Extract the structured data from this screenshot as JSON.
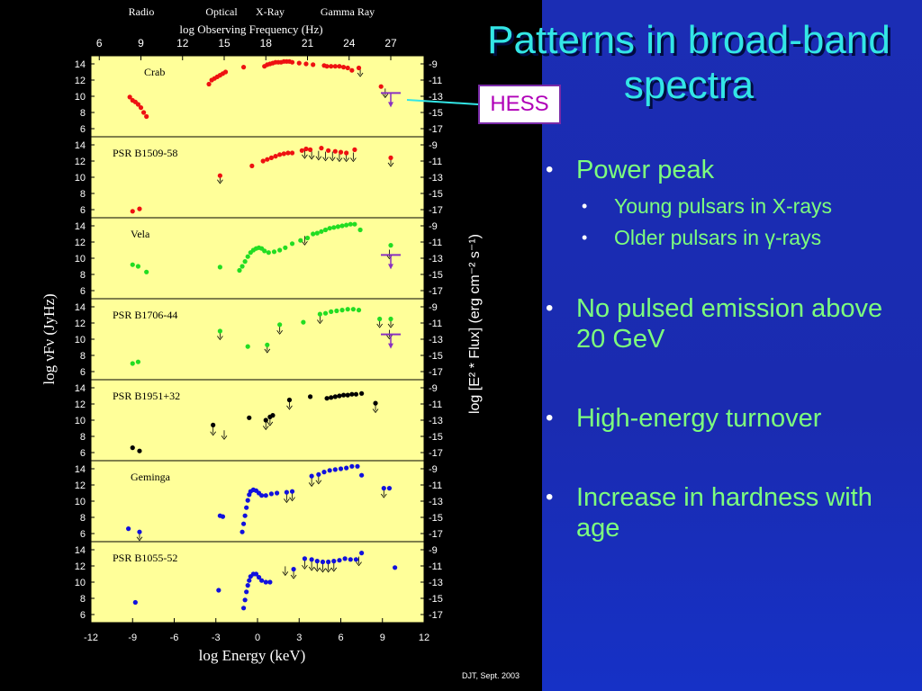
{
  "slide": {
    "title_line1": "Patterns in broad-band",
    "title_line2": "spectra",
    "hess_label": "HESS",
    "bullets": [
      {
        "text": "Power peak",
        "sub": [
          "Young pulsars in X-rays",
          "Older pulsars in γ-rays"
        ]
      },
      {
        "text": "No pulsed emission above 20 GeV"
      },
      {
        "text": "High-energy turnover"
      },
      {
        "text": "Increase in hardness with age"
      }
    ],
    "footer": "DJT, Sept. 2003"
  },
  "chart_data": {
    "type": "scatter",
    "top_bands": [
      "Radio",
      "Optical",
      "X-Ray",
      "Gamma Ray"
    ],
    "top_axis_label": "log Observing Frequency (Hz)",
    "top_ticks": [
      6,
      9,
      12,
      15,
      18,
      21,
      24,
      27
    ],
    "xlabel": "log Energy (keV)",
    "xticks": [
      -12,
      -9,
      -6,
      -3,
      0,
      3,
      6,
      9,
      12
    ],
    "xlim": [
      -12,
      12
    ],
    "ylabel_left": "log νFν (JyHz)",
    "ylabel_right": "log [E² * Flux] (erg cm⁻² s⁻¹)",
    "left_ticks": [
      6,
      8,
      10,
      12,
      14
    ],
    "right_ticks": [
      -9,
      -11,
      -13,
      -15,
      -17
    ],
    "panel_ylim": [
      5,
      15
    ],
    "colors": {
      "red": "#ee1111",
      "green": "#22dd22",
      "black": "#000000",
      "blue": "#1111dd",
      "limit": "#8a30c0",
      "panel_bg": "#ffff99"
    },
    "panels": [
      {
        "name": "Crab",
        "color": "red",
        "hess": true,
        "points": [
          [
            -9.2,
            9.9
          ],
          [
            -9.0,
            9.5
          ],
          [
            -8.8,
            9.3
          ],
          [
            -8.6,
            9.0
          ],
          [
            -8.4,
            8.6
          ],
          [
            -8.2,
            8.0
          ],
          [
            -8.0,
            7.5
          ],
          [
            -3.5,
            11.5
          ],
          [
            -3.3,
            12.0
          ],
          [
            -3.1,
            12.2
          ],
          [
            -2.9,
            12.4
          ],
          [
            -2.7,
            12.6
          ],
          [
            -2.5,
            12.8
          ],
          [
            -2.3,
            13.0
          ],
          [
            -1.0,
            13.6
          ],
          [
            0.5,
            13.7
          ],
          [
            0.7,
            13.9
          ],
          [
            0.9,
            14.0
          ],
          [
            1.1,
            14.1
          ],
          [
            1.3,
            14.2
          ],
          [
            1.5,
            14.2
          ],
          [
            1.7,
            14.2
          ],
          [
            1.9,
            14.3
          ],
          [
            2.1,
            14.3
          ],
          [
            2.3,
            14.3
          ],
          [
            2.5,
            14.2
          ],
          [
            3.0,
            14.1
          ],
          [
            3.5,
            14.0
          ],
          [
            4.0,
            13.9
          ],
          [
            4.8,
            13.8
          ],
          [
            5.0,
            13.7
          ],
          [
            5.3,
            13.7
          ],
          [
            5.6,
            13.7
          ],
          [
            5.9,
            13.7
          ],
          [
            6.2,
            13.6
          ],
          [
            6.5,
            13.5
          ],
          [
            6.8,
            13.2
          ],
          [
            7.3,
            13.5
          ],
          [
            8.9,
            11.2
          ]
        ],
        "limits": [
          [
            7.4,
            13.0
          ],
          [
            9.2,
            10.4
          ]
        ]
      },
      {
        "name": "PSR B1509-58",
        "color": "red",
        "hess": false,
        "points": [
          [
            -9.0,
            5.8
          ],
          [
            -8.5,
            6.1
          ],
          [
            -2.7,
            10.2
          ],
          [
            -0.4,
            11.4
          ],
          [
            0.4,
            12.0
          ],
          [
            0.7,
            12.2
          ],
          [
            1.0,
            12.4
          ],
          [
            1.3,
            12.6
          ],
          [
            1.6,
            12.8
          ],
          [
            1.9,
            12.9
          ],
          [
            2.2,
            13.0
          ],
          [
            2.5,
            13.0
          ],
          [
            3.2,
            13.3
          ],
          [
            3.5,
            13.5
          ],
          [
            3.8,
            13.4
          ],
          [
            4.6,
            13.6
          ],
          [
            5.1,
            13.3
          ],
          [
            5.6,
            13.2
          ],
          [
            6.0,
            13.1
          ],
          [
            6.4,
            13.0
          ],
          [
            7.0,
            13.4
          ],
          [
            9.6,
            12.4
          ]
        ],
        "limits": [
          [
            3.4,
            12.9
          ],
          [
            3.9,
            12.8
          ],
          [
            4.4,
            12.7
          ],
          [
            4.9,
            12.6
          ],
          [
            5.4,
            12.6
          ],
          [
            5.9,
            12.5
          ],
          [
            6.4,
            12.5
          ],
          [
            6.9,
            12.5
          ],
          [
            9.6,
            11.9
          ],
          [
            -2.7,
            9.8
          ]
        ]
      },
      {
        "name": "Vela",
        "color": "green",
        "hess": true,
        "points": [
          [
            -9.0,
            9.2
          ],
          [
            -8.6,
            9.0
          ],
          [
            -8.0,
            8.3
          ],
          [
            -2.7,
            8.9
          ],
          [
            -1.3,
            8.5
          ],
          [
            -1.1,
            9.0
          ],
          [
            -0.9,
            9.6
          ],
          [
            -0.7,
            10.2
          ],
          [
            -0.5,
            10.7
          ],
          [
            -0.3,
            11.0
          ],
          [
            -0.1,
            11.2
          ],
          [
            0.1,
            11.3
          ],
          [
            0.3,
            11.2
          ],
          [
            0.5,
            10.9
          ],
          [
            0.8,
            10.7
          ],
          [
            1.2,
            10.8
          ],
          [
            1.6,
            11.0
          ],
          [
            2.0,
            11.3
          ],
          [
            2.5,
            11.8
          ],
          [
            3.1,
            12.2
          ],
          [
            3.6,
            12.5
          ],
          [
            4.0,
            13.0
          ],
          [
            4.3,
            13.1
          ],
          [
            4.6,
            13.3
          ],
          [
            4.9,
            13.5
          ],
          [
            5.2,
            13.7
          ],
          [
            5.5,
            13.8
          ],
          [
            5.8,
            13.9
          ],
          [
            6.1,
            14.0
          ],
          [
            6.4,
            14.1
          ],
          [
            6.7,
            14.2
          ],
          [
            7.0,
            14.2
          ],
          [
            7.4,
            13.5
          ],
          [
            9.6,
            11.6
          ]
        ],
        "limits": [
          [
            3.4,
            12.2
          ],
          [
            9.5,
            10.5
          ]
        ]
      },
      {
        "name": "PSR B1706-44",
        "color": "green",
        "hess": true,
        "points": [
          [
            -9.0,
            7.0
          ],
          [
            -8.6,
            7.2
          ],
          [
            -2.7,
            11.0
          ],
          [
            -0.7,
            9.1
          ],
          [
            0.7,
            9.3
          ],
          [
            1.6,
            11.8
          ],
          [
            3.3,
            12.1
          ],
          [
            4.5,
            13.1
          ],
          [
            4.9,
            13.2
          ],
          [
            5.3,
            13.4
          ],
          [
            5.7,
            13.5
          ],
          [
            6.1,
            13.6
          ],
          [
            6.5,
            13.7
          ],
          [
            6.9,
            13.7
          ],
          [
            7.3,
            13.6
          ],
          [
            8.8,
            12.5
          ],
          [
            9.6,
            12.5
          ]
        ],
        "limits": [
          [
            -2.7,
            10.5
          ],
          [
            0.7,
            8.9
          ],
          [
            1.6,
            11.2
          ],
          [
            4.5,
            12.5
          ],
          [
            9.5,
            10.6
          ],
          [
            8.8,
            12.0
          ],
          [
            9.6,
            12.0
          ]
        ]
      },
      {
        "name": "PSR B1951+32",
        "color": "black",
        "hess": false,
        "points": [
          [
            -9.0,
            6.6
          ],
          [
            -8.5,
            6.2
          ],
          [
            -3.2,
            9.4
          ],
          [
            -0.6,
            10.3
          ],
          [
            0.6,
            10.0
          ],
          [
            0.9,
            10.4
          ],
          [
            1.1,
            10.6
          ],
          [
            2.3,
            12.5
          ],
          [
            3.8,
            12.9
          ],
          [
            5.0,
            12.7
          ],
          [
            5.3,
            12.8
          ],
          [
            5.6,
            12.9
          ],
          [
            5.9,
            13.0
          ],
          [
            6.2,
            13.1
          ],
          [
            6.5,
            13.1
          ],
          [
            6.8,
            13.2
          ],
          [
            7.1,
            13.2
          ],
          [
            7.5,
            13.3
          ],
          [
            8.5,
            12.1
          ]
        ],
        "limits": [
          [
            -3.2,
            8.7
          ],
          [
            -2.4,
            8.2
          ],
          [
            0.6,
            9.4
          ],
          [
            0.9,
            9.9
          ],
          [
            2.3,
            11.9
          ],
          [
            8.5,
            11.5
          ]
        ]
      },
      {
        "name": "Geminga",
        "color": "blue",
        "hess": false,
        "points": [
          [
            -9.3,
            6.6
          ],
          [
            -8.5,
            6.2
          ],
          [
            -2.7,
            8.2
          ],
          [
            -2.5,
            8.1
          ],
          [
            -1.1,
            6.2
          ],
          [
            -1.0,
            7.2
          ],
          [
            -0.9,
            8.2
          ],
          [
            -0.8,
            9.2
          ],
          [
            -0.7,
            10.1
          ],
          [
            -0.6,
            10.8
          ],
          [
            -0.5,
            11.2
          ],
          [
            -0.3,
            11.4
          ],
          [
            -0.1,
            11.3
          ],
          [
            0.1,
            11.0
          ],
          [
            0.3,
            10.7
          ],
          [
            0.6,
            10.7
          ],
          [
            1.0,
            10.9
          ],
          [
            1.4,
            11.0
          ],
          [
            2.1,
            11.1
          ],
          [
            2.5,
            11.2
          ],
          [
            3.9,
            13.1
          ],
          [
            4.4,
            13.3
          ],
          [
            4.8,
            13.6
          ],
          [
            5.2,
            13.8
          ],
          [
            5.6,
            13.9
          ],
          [
            6.0,
            14.0
          ],
          [
            6.4,
            14.1
          ],
          [
            6.8,
            14.3
          ],
          [
            7.2,
            14.3
          ],
          [
            7.5,
            13.2
          ],
          [
            9.1,
            11.6
          ],
          [
            9.5,
            11.6
          ]
        ],
        "limits": [
          [
            -8.5,
            5.7
          ],
          [
            2.1,
            10.4
          ],
          [
            2.5,
            10.6
          ],
          [
            3.9,
            12.4
          ],
          [
            4.4,
            12.7
          ],
          [
            9.1,
            11.0
          ]
        ]
      },
      {
        "name": "PSR B1055-52",
        "color": "blue",
        "hess": false,
        "points": [
          [
            -8.8,
            7.5
          ],
          [
            -2.8,
            9.0
          ],
          [
            -1.0,
            6.8
          ],
          [
            -0.9,
            7.8
          ],
          [
            -0.8,
            8.8
          ],
          [
            -0.7,
            9.6
          ],
          [
            -0.6,
            10.2
          ],
          [
            -0.5,
            10.7
          ],
          [
            -0.3,
            11.0
          ],
          [
            -0.1,
            11.0
          ],
          [
            0.1,
            10.6
          ],
          [
            0.3,
            10.2
          ],
          [
            0.6,
            10.0
          ],
          [
            0.9,
            10.0
          ],
          [
            2.6,
            11.6
          ],
          [
            3.4,
            12.9
          ],
          [
            3.9,
            12.8
          ],
          [
            4.3,
            12.6
          ],
          [
            4.7,
            12.5
          ],
          [
            5.1,
            12.5
          ],
          [
            5.5,
            12.6
          ],
          [
            5.9,
            12.7
          ],
          [
            6.3,
            12.9
          ],
          [
            6.7,
            12.8
          ],
          [
            7.1,
            12.8
          ],
          [
            7.5,
            13.6
          ],
          [
            9.9,
            11.8
          ]
        ],
        "limits": [
          [
            2.0,
            11.4
          ],
          [
            2.6,
            11.0
          ],
          [
            3.4,
            12.2
          ],
          [
            3.9,
            12.0
          ],
          [
            4.3,
            11.9
          ],
          [
            4.7,
            11.8
          ],
          [
            5.1,
            11.8
          ],
          [
            5.5,
            11.9
          ],
          [
            7.3,
            12.6
          ]
        ]
      }
    ]
  }
}
